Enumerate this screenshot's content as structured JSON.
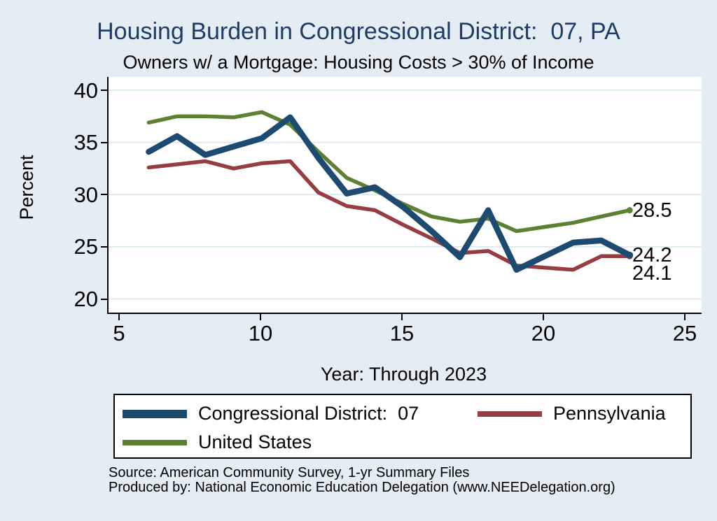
{
  "title": "Housing Burden in Congressional District:  07, PA",
  "subtitle": "Owners w/ a Mortgage: Housing Costs > 30% of Income",
  "ylabel": "Percent",
  "xlabel": "Year: Through 2023",
  "footer": {
    "source": "Source: American Community Survey, 1-yr Summary Files",
    "produced_by": "Produced by: National Economic Education Delegation (www.NEEDelegation.org)"
  },
  "colors": {
    "district": "#1d4a70",
    "state": "#963d43",
    "us": "#5d8033",
    "background": "#e3edf3",
    "plot_background": "#ffffff",
    "grid": "#dceaf2",
    "title": "#1f3b66",
    "text": "#000000"
  },
  "chart_data": {
    "type": "line",
    "title": "Housing Burden in Congressional District:  07, PA",
    "subtitle": "Owners w/ a Mortgage: Housing Costs > 30% of Income",
    "xlabel": "Year: Through 2023",
    "ylabel": "Percent",
    "xlim": [
      5,
      25
    ],
    "ylim": [
      20,
      40
    ],
    "x_ticks": [
      5,
      10,
      15,
      20,
      25
    ],
    "y_ticks": [
      40,
      35,
      30,
      25,
      20
    ],
    "grid": true,
    "legend_position": "bottom",
    "x": [
      6,
      7,
      8,
      9,
      10,
      11,
      12,
      13,
      14,
      15,
      16,
      17,
      18,
      19,
      20,
      21,
      22,
      23
    ],
    "series": [
      {
        "key": "district",
        "name": "Congressional District:  07",
        "color_key": "district",
        "end_label": "24.2",
        "values": [
          34.1,
          35.6,
          33.8,
          34.6,
          35.4,
          37.4,
          33.5,
          30.1,
          30.7,
          28.8,
          26.5,
          24.0,
          28.5,
          22.8,
          24.1,
          25.4,
          25.6,
          24.2
        ]
      },
      {
        "key": "state",
        "name": "Pennsylvania",
        "color_key": "state",
        "end_label": "24.1",
        "values": [
          32.6,
          32.9,
          33.2,
          32.5,
          33.0,
          33.2,
          30.2,
          28.9,
          28.5,
          27.1,
          25.8,
          24.4,
          24.6,
          23.2,
          23.0,
          22.8,
          24.1,
          24.1
        ]
      },
      {
        "key": "us",
        "name": "United States",
        "color_key": "us",
        "end_label": "28.5",
        "values": [
          36.9,
          37.5,
          37.5,
          37.4,
          37.9,
          36.7,
          34.1,
          31.6,
          30.4,
          29.1,
          27.9,
          27.4,
          27.7,
          26.5,
          26.9,
          27.3,
          27.9,
          28.5
        ]
      }
    ]
  }
}
